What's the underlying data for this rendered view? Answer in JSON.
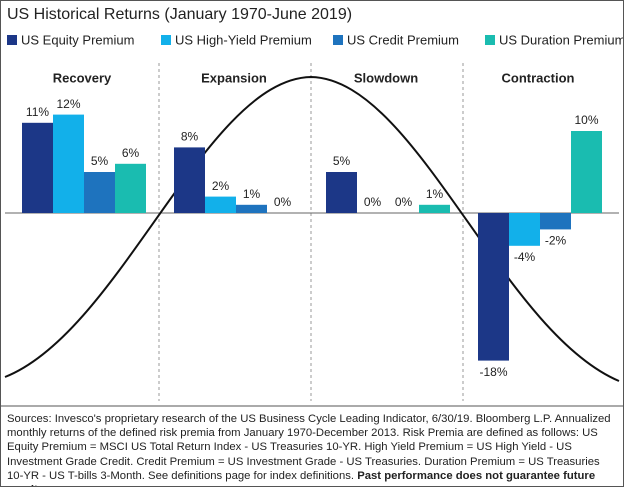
{
  "chart_data": {
    "type": "bar",
    "title": "US Historical Returns (January 1970-June 2019)",
    "categories": [
      "Recovery",
      "Expansion",
      "Slowdown",
      "Contraction"
    ],
    "series": [
      {
        "name": "US Equity Premium",
        "color": "#1c3787",
        "values": [
          11,
          8,
          5,
          -18
        ],
        "value_labels": [
          "11%",
          "8%",
          "5%",
          "-18%"
        ]
      },
      {
        "name": "US High-Yield Premium",
        "color": "#12b0ea",
        "values": [
          12,
          2,
          0,
          -4
        ],
        "value_labels": [
          "12%",
          "2%",
          "0%",
          "-4%"
        ]
      },
      {
        "name": "US Credit Premium",
        "color": "#1e73be",
        "values": [
          5,
          1,
          0,
          -2
        ],
        "value_labels": [
          "5%",
          "1%",
          "0%",
          "-2%"
        ]
      },
      {
        "name": "US Duration Premium",
        "color": "#1abcb0",
        "values": [
          6,
          0,
          1,
          10
        ],
        "value_labels": [
          "6%",
          "0%",
          "1%",
          "10%"
        ]
      }
    ],
    "sources": {
      "text": "Sources: Invesco's proprietary research of the US Business Cycle Leading Indicator, 6/30/19. Bloomberg L.P. Annualized monthly returns of the defined risk premia from January 1970-December 2013. Risk Premia are defined as follows: US Equity Premium = MSCI US Total Return Index - US Treasuries 10-YR. High Yield Premium = US High Yield - US Investment Grade Credit. Credit Premium = US Investment Grade - US Treasuries. Duration Premium = US Treasuries 10-YR - US T-bills 3-Month. See definitions page for index definitions.",
      "bold": "Past performance does not guarantee future results."
    }
  }
}
